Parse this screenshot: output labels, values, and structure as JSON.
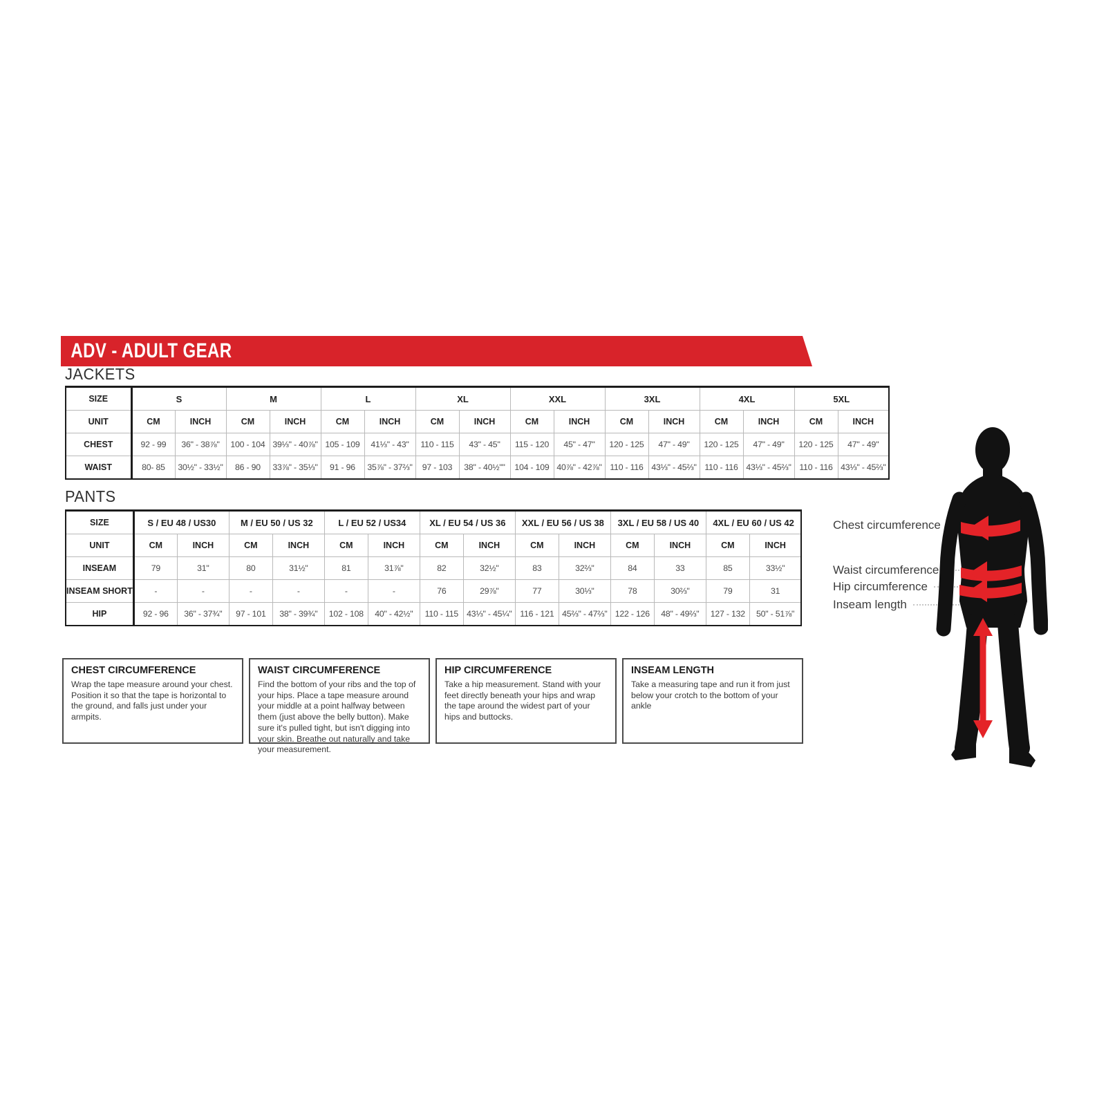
{
  "banner": {
    "title": "ADV - ADULT GEAR"
  },
  "colors": {
    "accent_red": "#d8232a",
    "arrow_red": "#e42328",
    "silhouette": "#121212"
  },
  "jackets": {
    "label": "JACKETS",
    "row_headers": [
      "SIZE",
      "UNIT",
      "CHEST",
      "WAIST"
    ],
    "unit_cm": "CM",
    "unit_inch": "INCH",
    "columns": [
      {
        "size": "S",
        "chest_cm": "92 - 99",
        "chest_in": "36\" - 38⅞\"",
        "waist_cm": "80- 85",
        "waist_in": "30½\" - 33½\""
      },
      {
        "size": "M",
        "chest_cm": "100 - 104",
        "chest_in": "39⅓\" - 40⅞\"",
        "waist_cm": "86 - 90",
        "waist_in": "33⅞\" - 35⅓\""
      },
      {
        "size": "L",
        "chest_cm": "105 - 109",
        "chest_in": "41⅓\" - 43\"",
        "waist_cm": "91 - 96",
        "waist_in": "35⅞\" - 37⅔\""
      },
      {
        "size": "XL",
        "chest_cm": "110 - 115",
        "chest_in": "43\" - 45\"",
        "waist_cm": "97 - 103",
        "waist_in": "38\" - 40½\"\""
      },
      {
        "size": "XXL",
        "chest_cm": "115 - 120",
        "chest_in": "45\" - 47\"",
        "waist_cm": "104 - 109",
        "waist_in": "40⅞\" - 42⅞\""
      },
      {
        "size": "3XL",
        "chest_cm": "120 - 125",
        "chest_in": "47\" - 49\"",
        "waist_cm": "110 - 116",
        "waist_in": "43⅓\" - 45⅔\""
      },
      {
        "size": "4XL",
        "chest_cm": "120 - 125",
        "chest_in": "47\" - 49\"",
        "waist_cm": "110 - 116",
        "waist_in": "43⅓\" - 45⅔\""
      },
      {
        "size": "5XL",
        "chest_cm": "120 - 125",
        "chest_in": "47\" - 49\"",
        "waist_cm": "110 - 116",
        "waist_in": "43⅓\" - 45⅔\""
      }
    ]
  },
  "pants": {
    "label": "PANTS",
    "row_headers": [
      "SIZE",
      "UNIT",
      "INSEAM",
      "INSEAM SHORT",
      "HIP"
    ],
    "unit_cm": "CM",
    "unit_inch": "INCH",
    "columns": [
      {
        "size": "S / EU 48 / US30",
        "inseam_cm": "79",
        "inseam_in": "31\"",
        "short_cm": "-",
        "short_in": "-",
        "hip_cm": "92 - 96",
        "hip_in": "36\" - 37¾\""
      },
      {
        "size": "M / EU 50 / US 32",
        "inseam_cm": "80",
        "inseam_in": "31½\"",
        "short_cm": "-",
        "short_in": "-",
        "hip_cm": "97 - 101",
        "hip_in": "38\" - 39¾\""
      },
      {
        "size": "L / EU 52 / US34",
        "inseam_cm": "81",
        "inseam_in": "31⅞\"",
        "short_cm": "-",
        "short_in": "-",
        "hip_cm": "102 - 108",
        "hip_in": "40\" - 42½\""
      },
      {
        "size": "XL / EU 54 / US 36",
        "inseam_cm": "82",
        "inseam_in": "32½\"",
        "short_cm": "76",
        "short_in": "29⅞\"",
        "hip_cm": "110 - 115",
        "hip_in": "43⅓\" - 45¼\""
      },
      {
        "size": "XXL / EU 56 / US 38",
        "inseam_cm": "83",
        "inseam_in": "32⅔\"",
        "short_cm": "77",
        "short_in": "30⅓\"",
        "hip_cm": "116 - 121",
        "hip_in": "45⅔\" - 47⅔\""
      },
      {
        "size": "3XL / EU 58 / US 40",
        "inseam_cm": "84",
        "inseam_in": "33",
        "short_cm": "78",
        "short_in": "30⅔\"",
        "hip_cm": "122 - 126",
        "hip_in": "48\" - 49⅔\""
      },
      {
        "size": "4XL / EU 60 / US 42",
        "inseam_cm": "85",
        "inseam_in": "33½\"",
        "short_cm": "79",
        "short_in": "31",
        "hip_cm": "127 - 132",
        "hip_in": "50\" - 51⅞\""
      }
    ]
  },
  "info_boxes": [
    {
      "title": "CHEST CIRCUMFERENCE",
      "body": "Wrap the tape measure around your chest. Position it so that the tape is horizontal to the ground, and falls just under your armpits."
    },
    {
      "title": "WAIST CIRCUMFERENCE",
      "body": "Find the bottom of your ribs and the top of your hips. Place a tape measure around your middle at a point halfway between them (just above the belly button). Make sure it's pulled tight, but isn't digging into your skin. Breathe out naturally and take your measurement."
    },
    {
      "title": "HIP CIRCUMFERENCE",
      "body": "Take a hip measurement. Stand with your feet directly beneath your hips and wrap the tape around the widest part of your hips and buttocks."
    },
    {
      "title": "INSEAM LENGTH",
      "body": "Take a measuring tape and run it from just below your crotch to the bottom of your ankle"
    }
  ],
  "figure_labels": {
    "chest": "Chest circumference",
    "waist": "Waist circumference",
    "hip": "Hip circumference",
    "inseam": "Inseam length"
  }
}
